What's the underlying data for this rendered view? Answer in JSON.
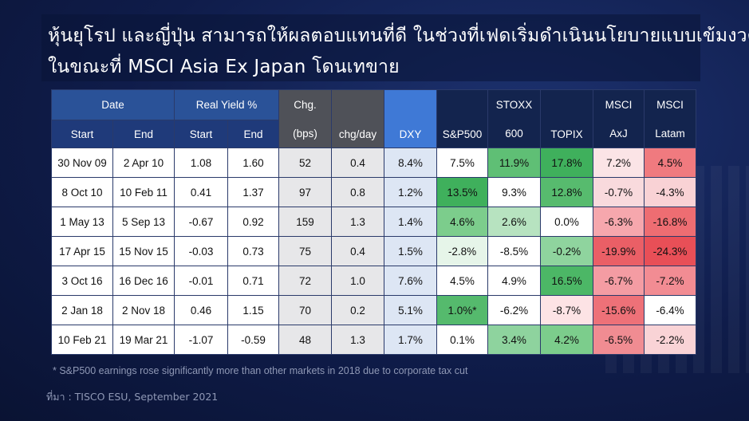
{
  "title": {
    "line1": "หุ้นยุโรป และญี่ปุ่น สามารถให้ผลตอบแทนที่ดี ในช่วงที่เฟดเริ่มดำเนินนโยบายแบบเข้มงวด",
    "line2": "ในขณะที่ MSCI Asia Ex Japan โดนเทขาย"
  },
  "table": {
    "header_groups": {
      "date": "Date",
      "real_yield": "Real Yield %",
      "chg_line1": "Chg.",
      "chg_line2": "(bps)",
      "chg_day": "chg/day",
      "dxy": "DXY",
      "sp500": "S&P500",
      "stoxx_line1": "STOXX",
      "stoxx_line2": "600",
      "topix": "TOPIX",
      "msci_axj_line1": "MSCI",
      "msci_axj_line2": "AxJ",
      "msci_latam_line1": "MSCI",
      "msci_latam_line2": "Latam"
    },
    "subheaders": {
      "date_start": "Start",
      "date_end": "End",
      "ry_start": "Start",
      "ry_end": "End"
    },
    "rows": [
      {
        "start": "30 Nov 09",
        "end": "2 Apr 10",
        "ry_start": "1.08",
        "ry_end": "1.60",
        "chg": "52",
        "chg_day": "0.4",
        "dxy": "8.4%",
        "sp500": "7.5%",
        "stoxx": "11.9%",
        "topix": "17.8%",
        "axj": "7.2%",
        "latam": "4.5%"
      },
      {
        "start": "8 Oct 10",
        "end": "10 Feb 11",
        "ry_start": "0.41",
        "ry_end": "1.37",
        "chg": "97",
        "chg_day": "0.8",
        "dxy": "1.2%",
        "sp500": "13.5%",
        "stoxx": "9.3%",
        "topix": "12.8%",
        "axj": "-0.7%",
        "latam": "-4.3%"
      },
      {
        "start": "1 May 13",
        "end": "5 Sep 13",
        "ry_start": "-0.67",
        "ry_end": "0.92",
        "chg": "159",
        "chg_day": "1.3",
        "dxy": "1.4%",
        "sp500": "4.6%",
        "stoxx": "2.6%",
        "topix": "0.0%",
        "axj": "-6.3%",
        "latam": "-16.8%"
      },
      {
        "start": "17 Apr 15",
        "end": "15 Nov 15",
        "ry_start": "-0.03",
        "ry_end": "0.73",
        "chg": "75",
        "chg_day": "0.4",
        "dxy": "1.5%",
        "sp500": "-2.8%",
        "stoxx": "-8.5%",
        "topix": "-0.2%",
        "axj": "-19.9%",
        "latam": "-24.3%"
      },
      {
        "start": "3 Oct 16",
        "end": "16 Dec 16",
        "ry_start": "-0.01",
        "ry_end": "0.71",
        "chg": "72",
        "chg_day": "1.0",
        "dxy": "7.6%",
        "sp500": "4.5%",
        "stoxx": "4.9%",
        "topix": "16.5%",
        "axj": "-6.7%",
        "latam": "-7.2%"
      },
      {
        "start": "2 Jan 18",
        "end": "2 Nov 18",
        "ry_start": "0.46",
        "ry_end": "1.15",
        "chg": "70",
        "chg_day": "0.2",
        "dxy": "5.1%",
        "sp500": "1.0%*",
        "stoxx": "-6.2%",
        "topix": "-8.7%",
        "axj": "-15.6%",
        "latam": "-6.4%"
      },
      {
        "start": "10 Feb 21",
        "end": "19 Mar 21",
        "ry_start": "-1.07",
        "ry_end": "-0.59",
        "chg": "48",
        "chg_day": "1.3",
        "dxy": "1.7%",
        "sp500": "0.1%",
        "stoxx": "3.4%",
        "topix": "4.2%",
        "axj": "-6.5%",
        "latam": "-2.2%"
      }
    ],
    "cell_colors": [
      {
        "sp500": "#ffffff",
        "stoxx": "#5fbf75",
        "topix": "#3fb05c",
        "axj": "#fbe4e6",
        "latam": "#f07a7f"
      },
      {
        "sp500": "#3fb05c",
        "stoxx": "#ffffff",
        "topix": "#57bb6e",
        "axj": "#f9dadd",
        "latam": "#f9d2d5"
      },
      {
        "sp500": "#7ccd8c",
        "stoxx": "#b7e3c0",
        "topix": "#ffffff",
        "axj": "#f6a7ad",
        "latam": "#ee6d72"
      },
      {
        "sp500": "#e6f5e9",
        "stoxx": "#ffffff",
        "topix": "#8fd49e",
        "axj": "#ea5f66",
        "latam": "#e84f57"
      },
      {
        "sp500": "#ffffff",
        "stoxx": "#ffffff",
        "topix": "#4cb766",
        "axj": "#f49ca3",
        "latam": "#f28c93"
      },
      {
        "sp500": "#55ba6d",
        "stoxx": "#ffffff",
        "topix": "#fde3e5",
        "axj": "#ee7178",
        "latam": "#ffffff"
      },
      {
        "sp500": "#ffffff",
        "stoxx": "#8ed39e",
        "topix": "#7ccd8c",
        "axj": "#f08c92",
        "latam": "#f9d3d6"
      }
    ]
  },
  "footnote": "* S&P500 earnings rose significantly more than other markets in 2018 due to corporate tax cut",
  "source": "ที่มา : TISCO ESU, September 2021"
}
